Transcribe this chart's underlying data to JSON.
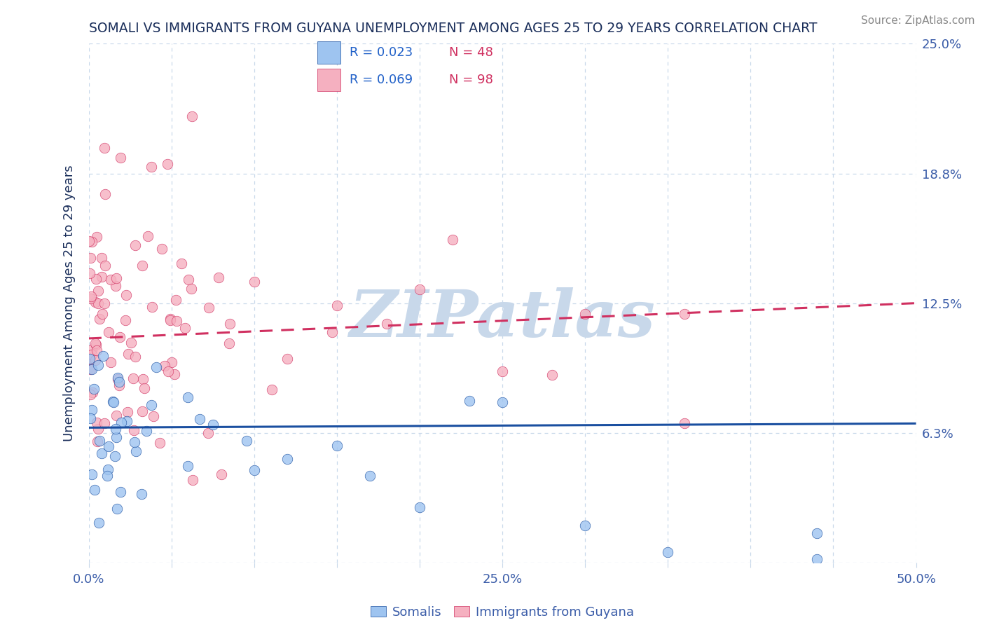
{
  "title": "SOMALI VS IMMIGRANTS FROM GUYANA UNEMPLOYMENT AMONG AGES 25 TO 29 YEARS CORRELATION CHART",
  "source": "Source: ZipAtlas.com",
  "ylabel": "Unemployment Among Ages 25 to 29 years",
  "xlim": [
    0.0,
    0.5
  ],
  "ylim": [
    0.0,
    0.25
  ],
  "ytick_positions": [
    0.0,
    0.0625,
    0.125,
    0.1875,
    0.25
  ],
  "ytick_labels": [
    "",
    "6.3%",
    "12.5%",
    "18.8%",
    "25.0%"
  ],
  "xtick_positions": [
    0.0,
    0.05,
    0.1,
    0.15,
    0.2,
    0.25,
    0.3,
    0.35,
    0.4,
    0.45,
    0.5
  ],
  "xtick_labels": [
    "0.0%",
    "",
    "",
    "",
    "",
    "25.0%",
    "",
    "",
    "",
    "",
    "50.0%"
  ],
  "background_color": "#ffffff",
  "watermark": "ZIPatlas",
  "watermark_color": "#c8d8ea",
  "grid_color": "#c8d8ea",
  "title_color": "#1a2e5a",
  "tick_color": "#3a5ca8",
  "axis_label_color": "#1a2e5a",
  "somali_color": "#9ec4f0",
  "somali_line_color": "#1a4fa0",
  "guyana_color": "#f5b0c0",
  "guyana_line_color": "#d03060",
  "legend_R_color": "#2060c8",
  "legend_N_color": "#d03060",
  "somali_R": 0.023,
  "somali_N": 48,
  "guyana_R": 0.069,
  "guyana_N": 98,
  "somali_name": "Somalis",
  "guyana_name": "Immigrants from Guyana",
  "somali_line_y0": 0.065,
  "somali_line_y1": 0.067,
  "guyana_line_y0": 0.108,
  "guyana_line_y1": 0.125
}
